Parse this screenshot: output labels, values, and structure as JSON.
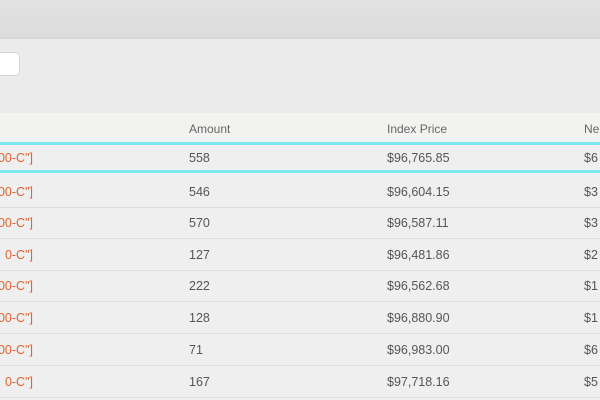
{
  "table": {
    "headers": [
      "",
      "Amount",
      "Index Price",
      "Ne"
    ],
    "rows": [
      {
        "instrument": "00-C\"]",
        "amount": "558",
        "index_price": "$96,765.85",
        "net": "$6",
        "selected": true
      },
      {
        "instrument": "00-C\"]",
        "amount": "546",
        "index_price": "$96,604.15",
        "net": "$3"
      },
      {
        "instrument": "00-C\"]",
        "amount": "570",
        "index_price": "$96,587.11",
        "net": "$3"
      },
      {
        "instrument": "0-C\"]",
        "amount": "127",
        "index_price": "$96,481.86",
        "net": "$2"
      },
      {
        "instrument": "00-C\"]",
        "amount": "222",
        "index_price": "$96,562.68",
        "net": "$1"
      },
      {
        "instrument": "00-C\"]",
        "amount": "128",
        "index_price": "$96,880.90",
        "net": "$1"
      },
      {
        "instrument": "00-C\"]",
        "amount": "71",
        "index_price": "$96,983.00",
        "net": "$6"
      },
      {
        "instrument": "0-C\"]",
        "amount": "167",
        "index_price": "$97,718.16",
        "net": "$5"
      }
    ]
  }
}
